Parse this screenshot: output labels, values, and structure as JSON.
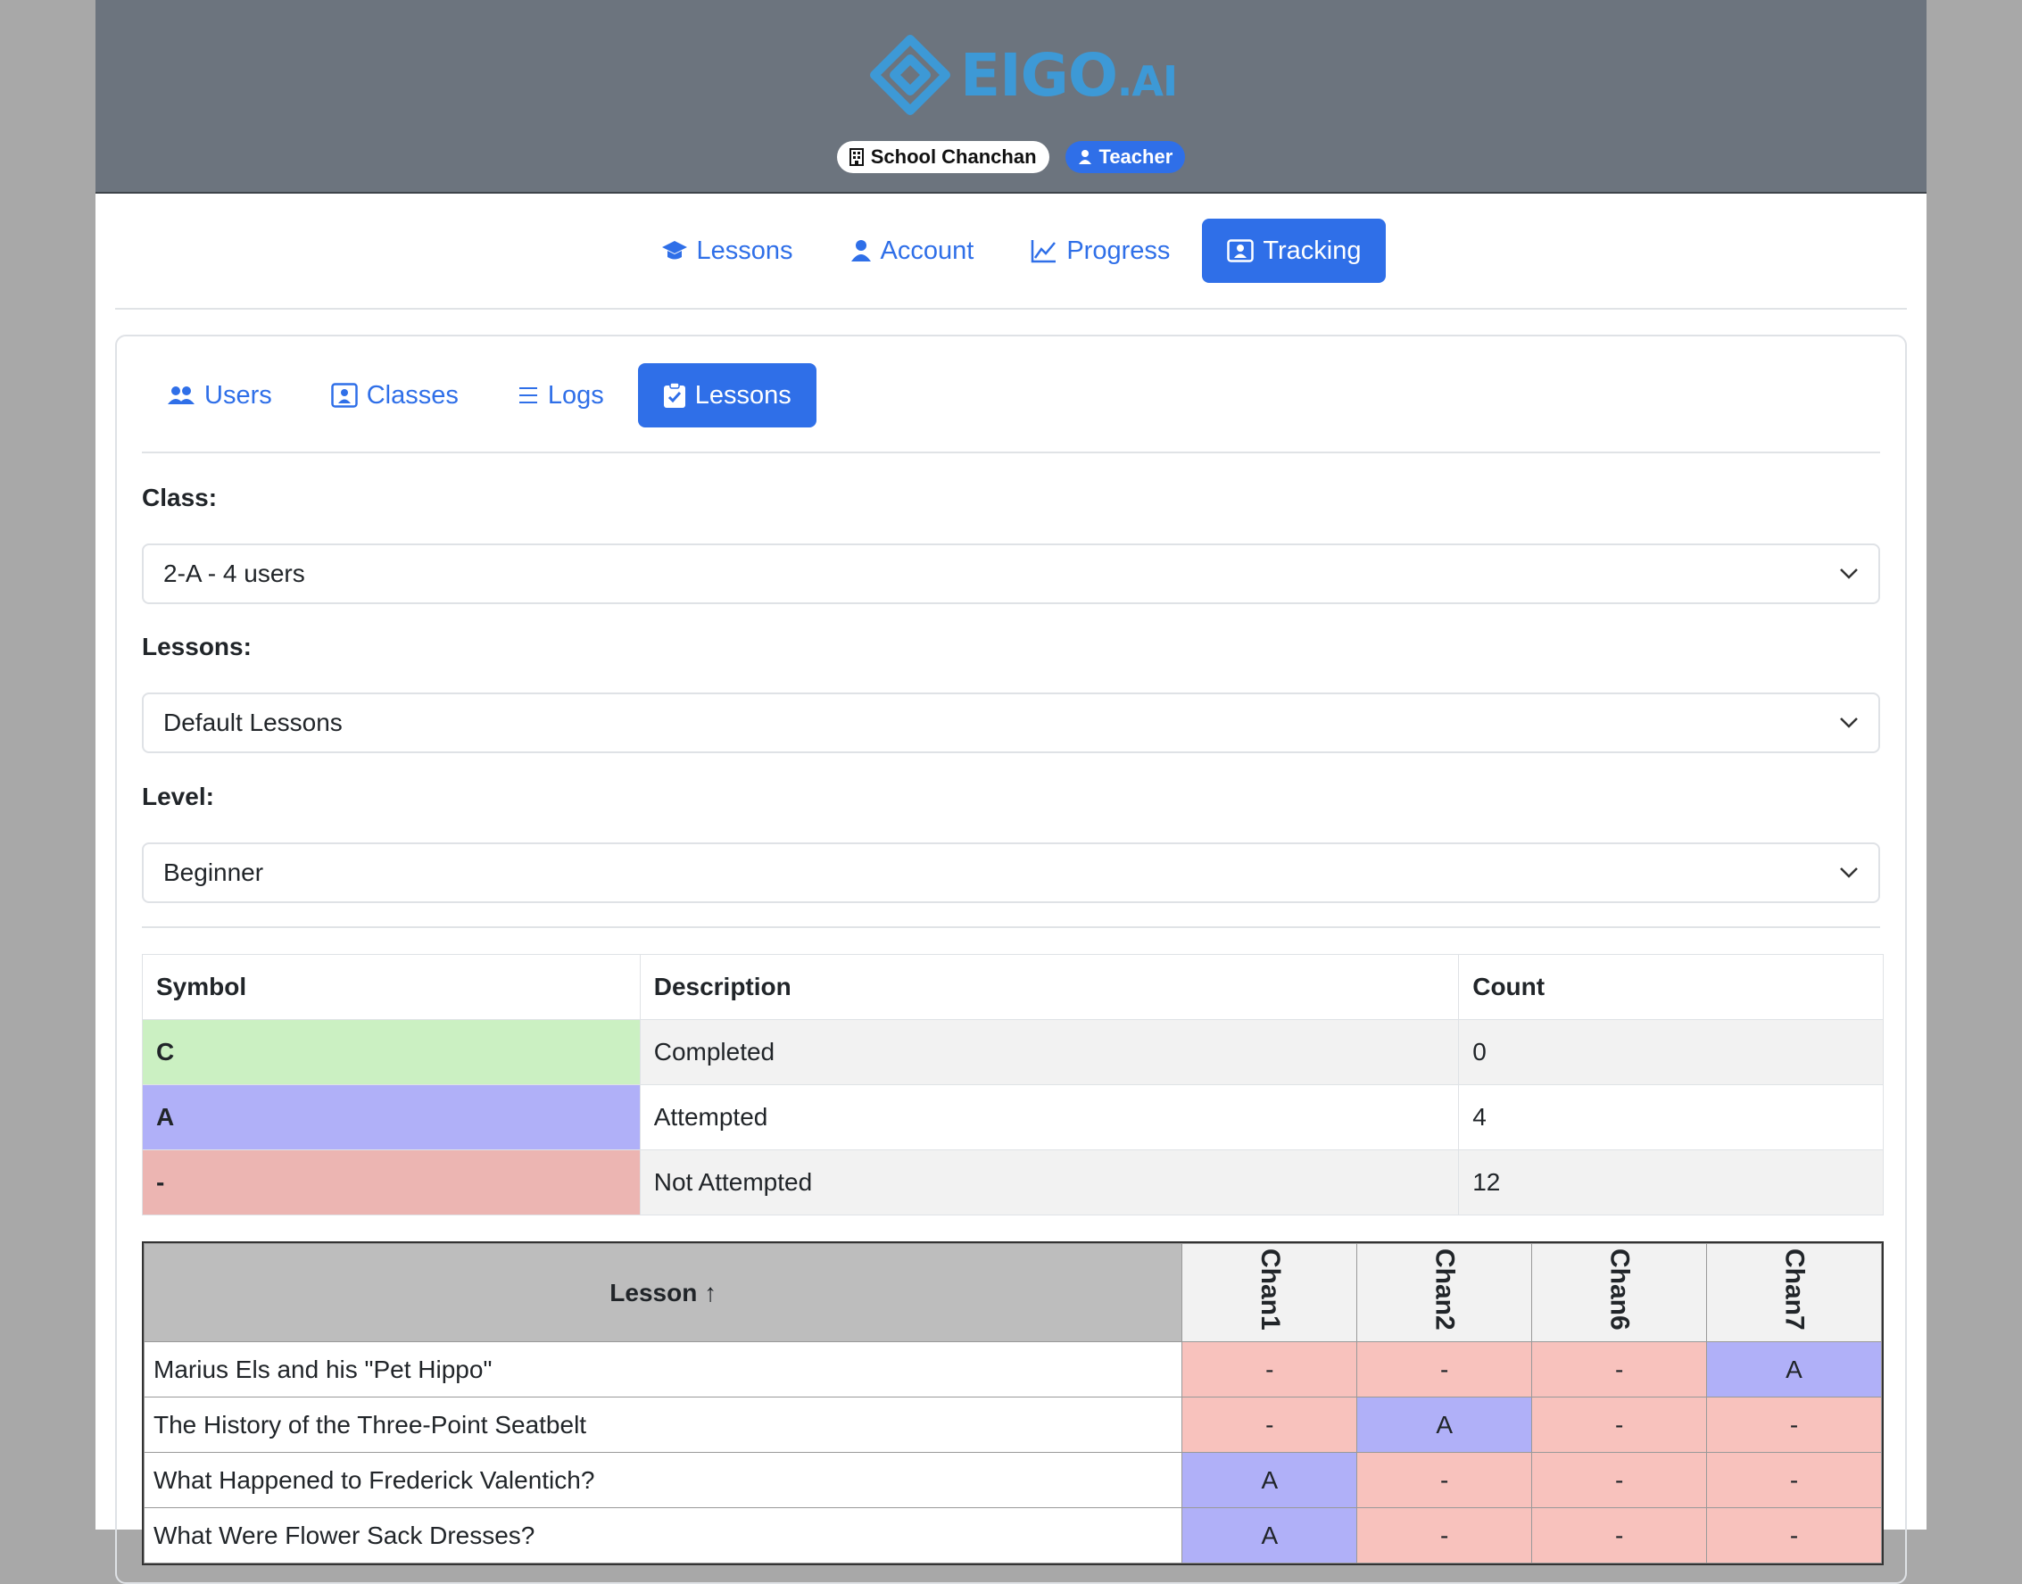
{
  "brand": {
    "name": "EIGO",
    "suffix": ".AI"
  },
  "badges": {
    "school": "School Chanchan",
    "role": "Teacher"
  },
  "main_nav": [
    {
      "label": "Lessons",
      "icon": "graduation-cap-icon",
      "active": false
    },
    {
      "label": "Account",
      "icon": "user-icon",
      "active": false
    },
    {
      "label": "Progress",
      "icon": "chart-line-icon",
      "active": false
    },
    {
      "label": "Tracking",
      "icon": "id-card-icon",
      "active": true
    }
  ],
  "sub_nav": [
    {
      "label": "Users",
      "icon": "users-icon",
      "active": false
    },
    {
      "label": "Classes",
      "icon": "id-card-icon",
      "active": false
    },
    {
      "label": "Logs",
      "icon": "list-icon",
      "active": false
    },
    {
      "label": "Lessons",
      "icon": "clipboard-check-icon",
      "active": true
    }
  ],
  "filters": {
    "class_label": "Class:",
    "class_value": "2-A - 4 users",
    "lessons_label": "Lessons:",
    "lessons_value": "Default Lessons",
    "level_label": "Level:",
    "level_value": "Beginner"
  },
  "legend": {
    "headers": [
      "Symbol",
      "Description",
      "Count"
    ],
    "rows": [
      {
        "symbol": "C",
        "description": "Completed",
        "count": "0",
        "color": "#cbf0c2"
      },
      {
        "symbol": "A",
        "description": "Attempted",
        "count": "4",
        "color": "#b0b0f8"
      },
      {
        "symbol": "-",
        "description": "Not Attempted",
        "count": "12",
        "color": "#ecb5b2"
      }
    ]
  },
  "tracking": {
    "lesson_header": "Lesson ↑",
    "users": [
      "Chan1",
      "Chan2",
      "Chan6",
      "Chan7"
    ],
    "rows": [
      {
        "lesson": "Marius Els and his \"Pet Hippo\"",
        "cells": [
          "-",
          "-",
          "-",
          "A"
        ]
      },
      {
        "lesson": "The History of the Three-Point Seatbelt",
        "cells": [
          "-",
          "A",
          "-",
          "-"
        ]
      },
      {
        "lesson": "What Happened to Frederick Valentich?",
        "cells": [
          "A",
          "-",
          "-",
          "-"
        ]
      },
      {
        "lesson": "What Were Flower Sack Dresses?",
        "cells": [
          "A",
          "-",
          "-",
          "-"
        ]
      }
    ],
    "colors": {
      "A": "#b0b0f8",
      "-": "#f8c2bd",
      "C": "#cbf0c2"
    }
  }
}
